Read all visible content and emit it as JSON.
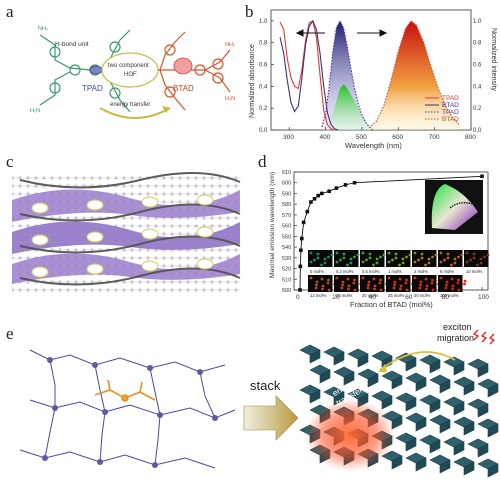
{
  "panels": {
    "a": {
      "letter": "a",
      "hbond_label": "H-bond unit",
      "tpad_label": "TPAD",
      "btad_label": "BTAD",
      "hof_label_line1": "two component",
      "hof_label_line2": "HOF",
      "energy_label": "energy transfer",
      "nh2": "NH₂",
      "h2n": "H₂N"
    },
    "b": {
      "letter": "b",
      "xlabel": "Wavelength (nm)",
      "ylabel_left": "Normalized absorbance",
      "ylabel_right": "Normalized intensity",
      "xticks": [
        "300",
        "400",
        "500",
        "600",
        "700",
        "800"
      ],
      "yticks": [
        "0.0",
        "0.2",
        "0.4",
        "0.6",
        "0.8",
        "1.0"
      ],
      "legend": [
        "TPAD",
        "BTAD",
        "TPAD",
        "BTAD"
      ]
    },
    "c": {
      "letter": "c"
    },
    "d": {
      "letter": "d",
      "xlabel": "Fraction of BTAD (mol%)",
      "ylabel": "Maximal emission wavelength (nm)",
      "xticks": [
        "0",
        "20",
        "40",
        "60",
        "80",
        "100"
      ],
      "yticks": [
        "500",
        "510",
        "520",
        "530",
        "540",
        "550",
        "560",
        "570",
        "580",
        "590",
        "600",
        "610"
      ],
      "row1_labels": [
        "0 mol%",
        "0.2 mol%",
        "0.5 mol%",
        "1 mol%",
        "2 mol%",
        "6 mol%",
        "10 mol%"
      ],
      "row2_labels": [
        "12 mol%",
        "16 mol%",
        "20 mol%",
        "25 mol%",
        "30 mol%",
        "100 mol%"
      ],
      "row1_colors": [
        "#1d8a5a",
        "#2f9a52",
        "#4fa23a",
        "#7a9a2a",
        "#a67b2a",
        "#b8622a",
        "#7a3a20"
      ],
      "row2_colors": [
        "#c04a22",
        "#c8401e",
        "#d0381a",
        "#d63418",
        "#d82c14",
        "#e0200e"
      ]
    },
    "e": {
      "letter": "e",
      "stack_label": "stack",
      "exciton_line1": "exciton",
      "exciton_line2": "migration",
      "energy_line1": "energy",
      "energy_line2": "transfer"
    }
  },
  "chart_data": [
    {
      "type": "line",
      "panel": "b",
      "xlabel": "Wavelength (nm)",
      "ylabel": "Normalized absorbance",
      "y2label": "Normalized intensity",
      "xlim": [
        250,
        800
      ],
      "ylim": [
        0,
        1.1
      ],
      "series": [
        {
          "name": "TPAD",
          "style": "solid",
          "color": "#e03a2e",
          "x": [
            275,
            285,
            295,
            305,
            315,
            325,
            335,
            345,
            355,
            365,
            375,
            385,
            395,
            405,
            415,
            425
          ],
          "y": [
            0.99,
            0.92,
            0.65,
            0.48,
            0.4,
            0.38,
            0.55,
            0.82,
            0.98,
            1.0,
            0.85,
            0.5,
            0.18,
            0.05,
            0.01,
            0.0
          ]
        },
        {
          "name": "BTAD",
          "style": "solid",
          "color": "#4a2e7a",
          "x": [
            275,
            285,
            295,
            305,
            315,
            325,
            335,
            345,
            355,
            365,
            375,
            385,
            395,
            405,
            415,
            425,
            435
          ],
          "y": [
            0.85,
            0.7,
            0.45,
            0.25,
            0.17,
            0.22,
            0.48,
            0.78,
            0.95,
            1.0,
            0.92,
            0.7,
            0.4,
            0.16,
            0.05,
            0.01,
            0.0
          ]
        },
        {
          "name": "TPAD",
          "style": "dotted",
          "color": "#4a3aa0",
          "x": [
            390,
            400,
            410,
            420,
            430,
            440,
            450,
            460,
            470,
            480,
            490,
            500,
            510,
            520,
            530
          ],
          "y": [
            0.03,
            0.15,
            0.4,
            0.72,
            0.94,
            1.0,
            0.93,
            0.76,
            0.56,
            0.38,
            0.24,
            0.14,
            0.07,
            0.03,
            0.0
          ]
        },
        {
          "name": "BTAD",
          "style": "dotted",
          "color": "#d04a2a",
          "x": [
            520,
            540,
            560,
            580,
            600,
            620,
            635,
            650,
            670,
            690,
            710,
            730,
            750,
            770
          ],
          "y": [
            0.02,
            0.08,
            0.22,
            0.45,
            0.72,
            0.93,
            1.0,
            0.96,
            0.8,
            0.58,
            0.38,
            0.22,
            0.11,
            0.04
          ]
        },
        {
          "name": "",
          "style": "solid",
          "color": "#2fbf3a",
          "x": [
            400,
            420,
            440,
            450,
            460,
            480,
            500,
            520,
            540
          ],
          "y": [
            0.0,
            0.15,
            0.38,
            0.42,
            0.38,
            0.26,
            0.14,
            0.05,
            0.0
          ]
        }
      ]
    },
    {
      "type": "line",
      "panel": "d",
      "xlabel": "Fraction of BTAD (mol%)",
      "ylabel": "Maximal emission wavelength (nm)",
      "xlim": [
        0,
        100
      ],
      "ylim": [
        500,
        610
      ],
      "series": [
        {
          "name": "",
          "x": [
            0,
            0.2,
            0.5,
            1,
            2,
            4,
            6,
            8,
            10,
            12,
            16,
            20,
            25,
            30,
            100
          ],
          "y": [
            500,
            522,
            537,
            548,
            563,
            573,
            582,
            585,
            588,
            590,
            592,
            595,
            598,
            600,
            606
          ]
        }
      ]
    }
  ]
}
